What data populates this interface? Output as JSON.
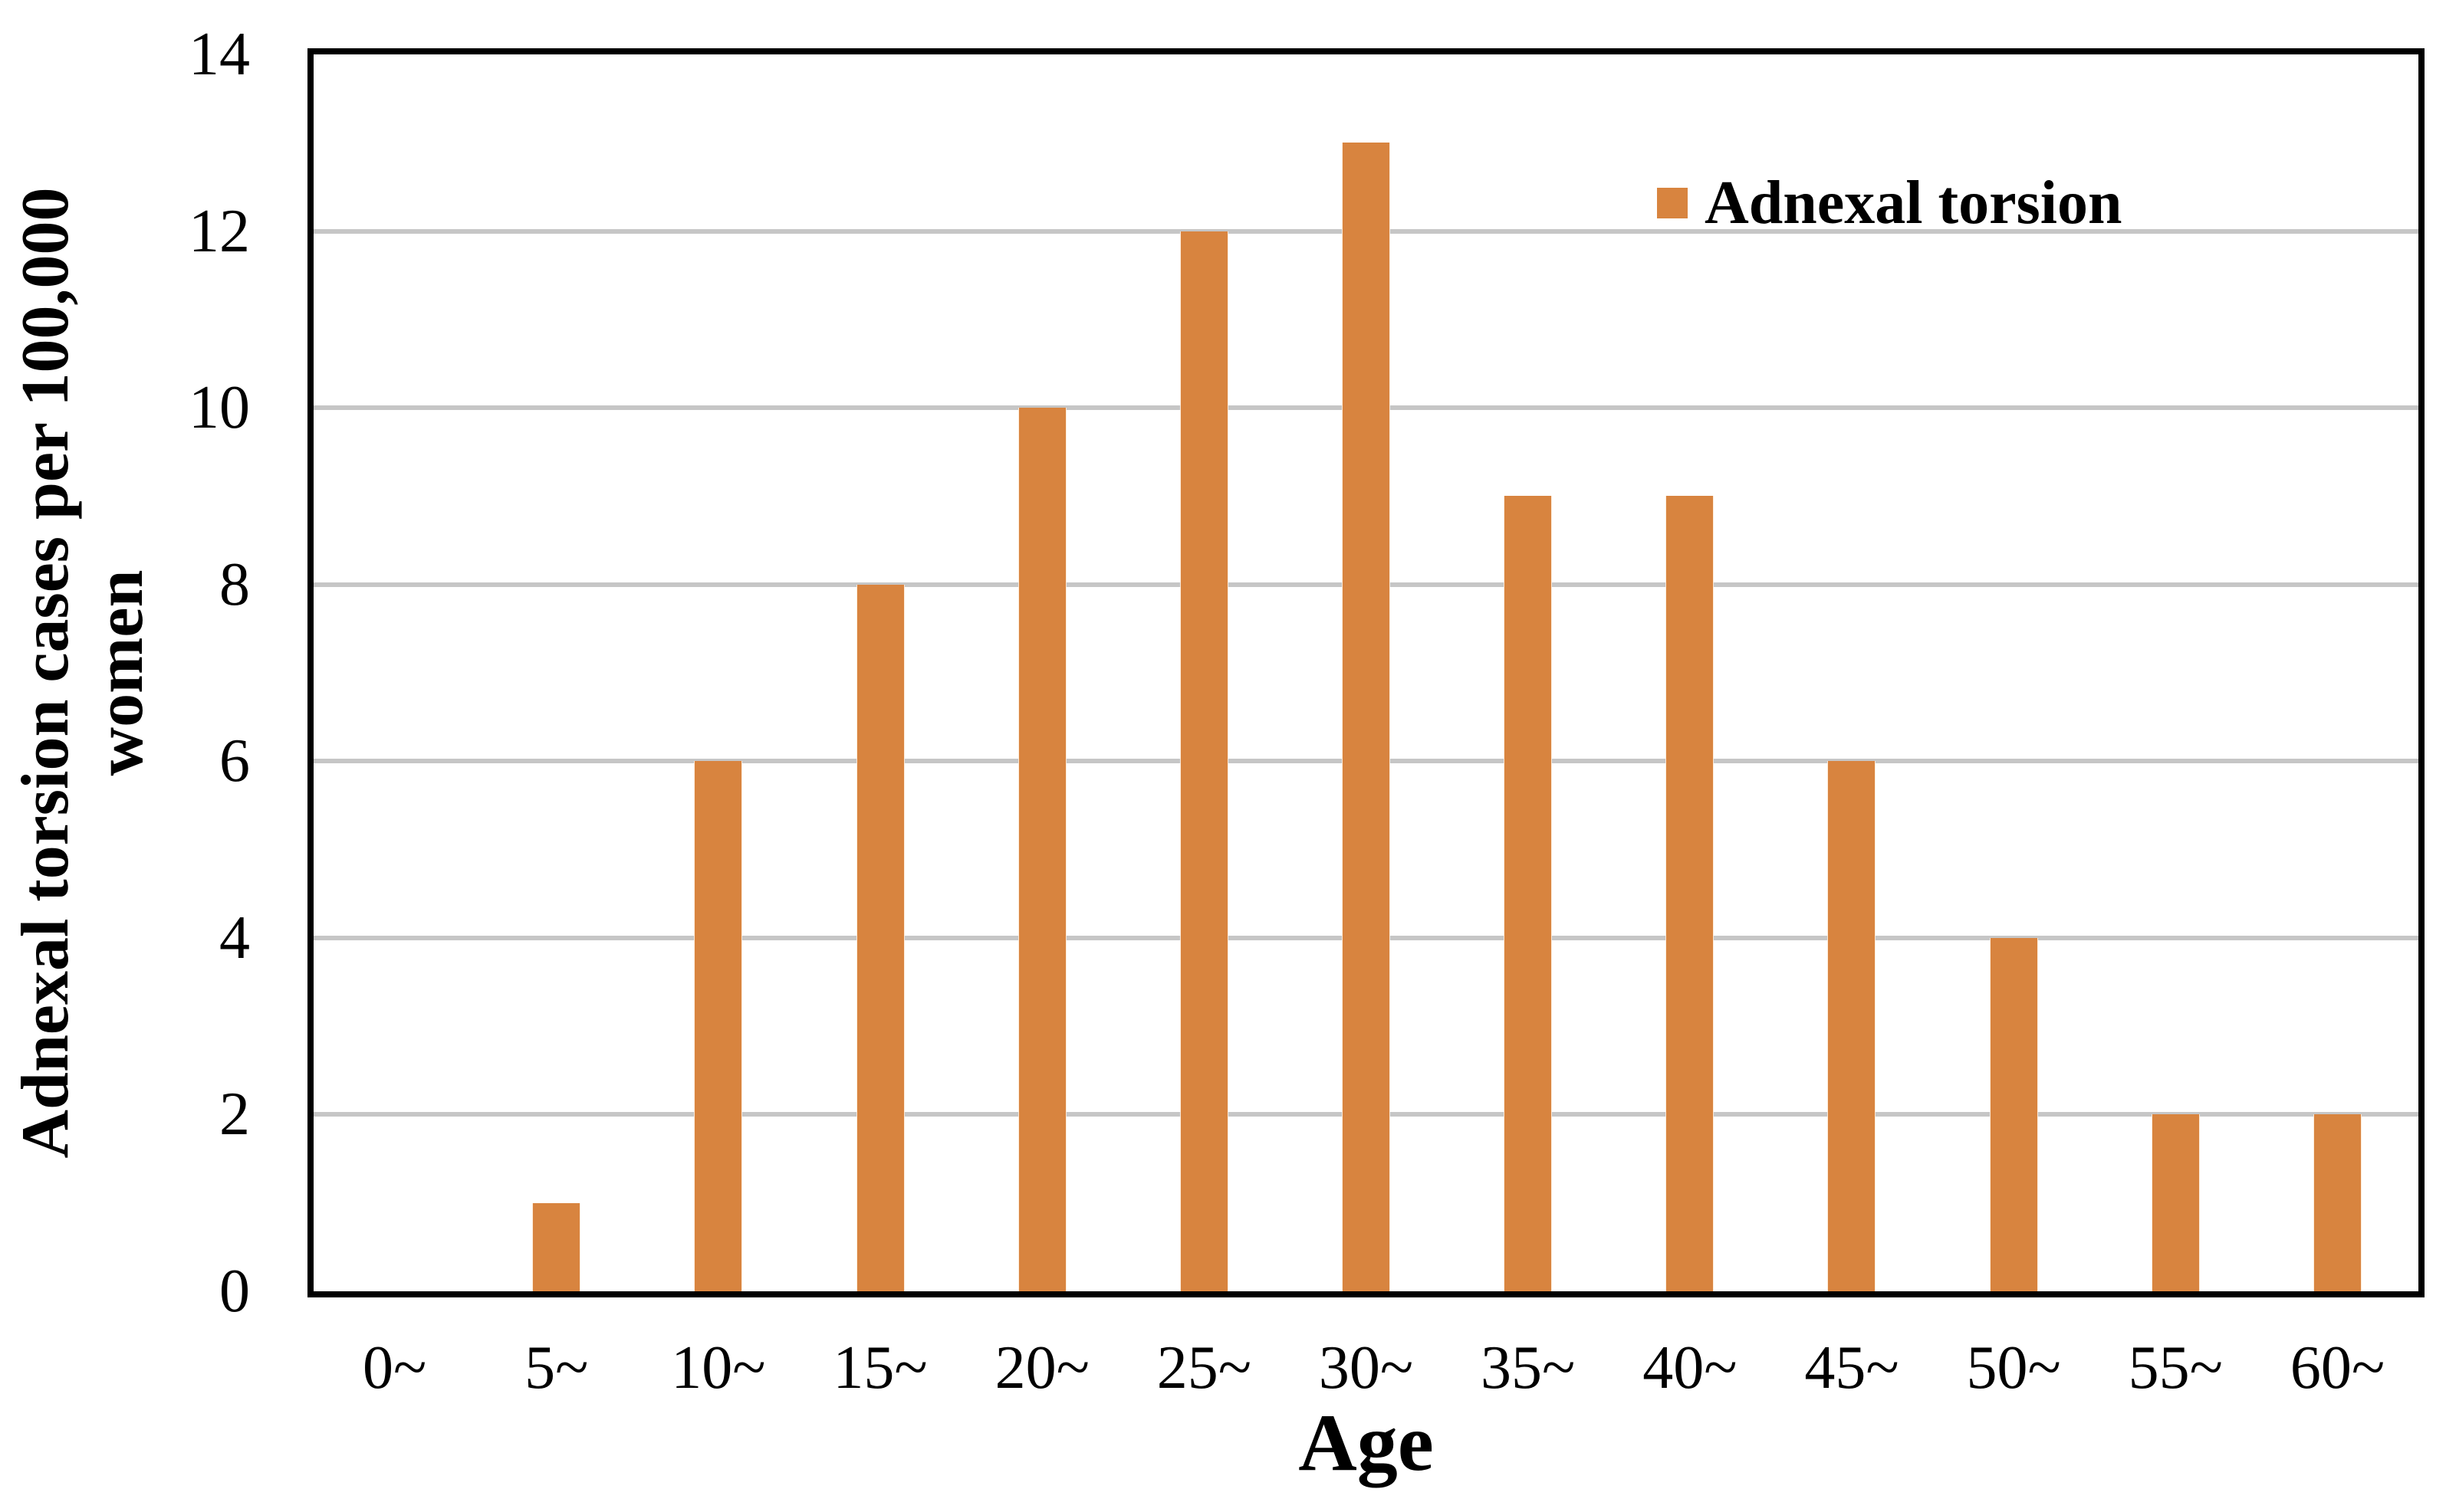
{
  "chart_data": {
    "type": "bar",
    "categories": [
      "0~",
      "5~",
      "10~",
      "15~",
      "20~",
      "25~",
      "30~",
      "35~",
      "40~",
      "45~",
      "50~",
      "55~",
      "60~"
    ],
    "series": [
      {
        "name": "Adnexal torsion",
        "values": [
          0,
          1,
          6,
          8,
          10,
          12,
          13,
          9,
          9,
          6,
          4,
          2,
          2
        ],
        "color": "#D8843F"
      }
    ],
    "title": "",
    "xlabel": "Age",
    "ylabel": "Adnexal torsion cases per 100,000 women",
    "ylabel_lines": [
      "Adnexal torsion cases per 100,000",
      "women"
    ],
    "ylim": [
      0,
      14
    ],
    "yticks": [
      0,
      2,
      4,
      6,
      8,
      10,
      12,
      14
    ],
    "gridline_values": [
      2,
      4,
      6,
      8,
      10,
      12
    ],
    "grid": true,
    "legend": {
      "label": "Adnexal torsion",
      "position": "top-right"
    },
    "colors": {
      "bar": "#D8843F",
      "gridline": "#C6C6C6",
      "axis": "#000000",
      "background": "#FFFFFF",
      "text": "#000000"
    }
  }
}
